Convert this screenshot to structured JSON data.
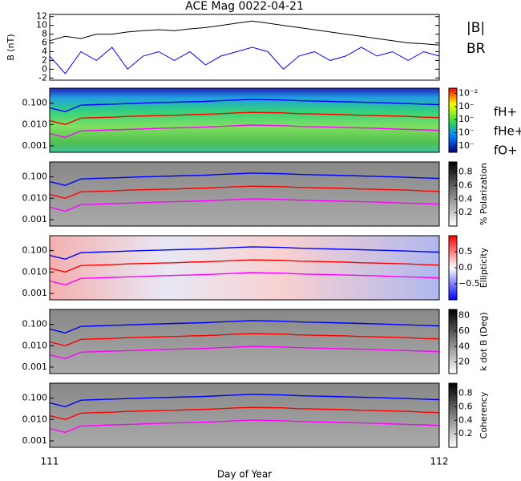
{
  "chart_data": [
    {
      "type": "line",
      "title": "ACE Mag 0022-04-21",
      "ylabel": "B (nT)",
      "xlim": [
        111,
        112
      ],
      "x": [
        111.0,
        111.04,
        111.08,
        111.12,
        111.16,
        111.2,
        111.24,
        111.28,
        111.32,
        111.36,
        111.4,
        111.44,
        111.48,
        111.52,
        111.56,
        111.6,
        111.64,
        111.68,
        111.72,
        111.76,
        111.8,
        111.84,
        111.88,
        111.92,
        111.96,
        112.0
      ],
      "ylim": [
        -2.5,
        12.5
      ],
      "yticks": [
        -2,
        0,
        2,
        4,
        6,
        8,
        10,
        12
      ],
      "series": [
        {
          "name": "|B|",
          "color": "#000000",
          "values": [
            6.5,
            7.5,
            7,
            8,
            8,
            8.5,
            8.8,
            9,
            8.8,
            9.2,
            9.5,
            10,
            10.5,
            11,
            10.5,
            10,
            9.5,
            9,
            8.5,
            8,
            7.5,
            7,
            6.5,
            6,
            5.8,
            5.5
          ]
        },
        {
          "name": "BR",
          "color": "#0000ff",
          "values": [
            3,
            -1,
            4,
            2,
            5,
            0,
            3,
            4,
            2,
            4,
            1,
            3,
            4,
            5,
            4,
            0,
            3,
            4,
            2,
            3,
            5,
            3,
            4,
            2,
            4,
            3
          ]
        }
      ]
    },
    {
      "type": "spectrogram",
      "log_y": true,
      "ylim": [
        0.0005,
        0.5
      ],
      "yticks": [
        {
          "value": 0.1,
          "label": "0.100"
        },
        {
          "value": 0.01,
          "label": "0.010"
        },
        {
          "value": 0.001,
          "label": "0.001"
        }
      ],
      "clim": [
        -6.5,
        -1.6
      ],
      "cticks": [
        {
          "value": -2,
          "label": "10⁻²"
        },
        {
          "value": -3,
          "label": "10⁻"
        },
        {
          "value": -4,
          "label": "10⁻"
        },
        {
          "value": -5,
          "label": "10⁻"
        },
        {
          "value": -6,
          "label": "10⁻"
        }
      ],
      "series": [
        {
          "name": "fH+",
          "color": "#0000ff",
          "values": [
            0.06,
            0.04,
            0.08,
            0.085,
            0.09,
            0.095,
            0.1,
            0.105,
            0.11,
            0.115,
            0.12,
            0.13,
            0.14,
            0.15,
            0.145,
            0.14,
            0.13,
            0.125,
            0.12,
            0.115,
            0.11,
            0.105,
            0.1,
            0.095,
            0.09,
            0.085
          ]
        },
        {
          "name": "fHe+",
          "color": "#ff0000",
          "values": [
            0.015,
            0.01,
            0.02,
            0.021,
            0.022,
            0.024,
            0.025,
            0.026,
            0.027,
            0.029,
            0.03,
            0.032,
            0.035,
            0.037,
            0.036,
            0.035,
            0.032,
            0.031,
            0.03,
            0.029,
            0.027,
            0.026,
            0.025,
            0.024,
            0.022,
            0.021
          ]
        },
        {
          "name": "fO+",
          "color": "#ff00ff",
          "values": [
            0.0038,
            0.0025,
            0.005,
            0.0053,
            0.0056,
            0.0059,
            0.0062,
            0.0066,
            0.0069,
            0.0072,
            0.0075,
            0.0081,
            0.0088,
            0.0094,
            0.0091,
            0.0088,
            0.0081,
            0.0078,
            0.0075,
            0.0072,
            0.0069,
            0.0066,
            0.0062,
            0.0059,
            0.0056,
            0.0053
          ]
        }
      ]
    },
    {
      "type": "spectrogram",
      "log_y": true,
      "ylim": [
        0.0005,
        0.5
      ],
      "yticks": [
        {
          "value": 0.1,
          "label": "0.100"
        },
        {
          "value": 0.01,
          "label": "0.010"
        },
        {
          "value": 0.001,
          "label": "0.001"
        }
      ],
      "clabel": "% Polarization",
      "clim": [
        0,
        0.95
      ],
      "cticks": [
        0.2,
        0.4,
        0.6,
        0.8
      ]
    },
    {
      "type": "spectrogram",
      "log_y": true,
      "ylim": [
        0.0005,
        0.5
      ],
      "yticks": [
        {
          "value": 0.1,
          "label": "0.100"
        },
        {
          "value": 0.01,
          "label": "0.010"
        },
        {
          "value": 0.001,
          "label": "0.001"
        }
      ],
      "clabel": "Ellipticity",
      "clim": [
        -1,
        1
      ],
      "cticks": [
        {
          "value": -0.5,
          "label": "−0.5"
        },
        {
          "value": 0,
          "label": "0.0"
        },
        0.5
      ]
    },
    {
      "type": "spectrogram",
      "log_y": true,
      "ylim": [
        0.0005,
        0.5
      ],
      "yticks": [
        {
          "value": 0.1,
          "label": "0.100"
        },
        {
          "value": 0.01,
          "label": "0.010"
        },
        {
          "value": 0.001,
          "label": "0.001"
        }
      ],
      "clabel": "k dot B (Deg)",
      "clim": [
        5,
        88
      ],
      "cticks": [
        20,
        40,
        60,
        80
      ]
    },
    {
      "type": "spectrogram",
      "log_y": true,
      "ylim": [
        0.0005,
        0.5
      ],
      "yticks": [
        {
          "value": 0.1,
          "label": "0.100"
        },
        {
          "value": 0.01,
          "label": "0.010"
        },
        {
          "value": 0.001,
          "label": "0.001"
        }
      ],
      "clabel": "Coherency",
      "clim": [
        0,
        0.95
      ],
      "cticks": [
        0.2,
        0.4,
        0.6,
        0.8
      ],
      "xticks": [
        111,
        112
      ],
      "xlabel": "Day of Year"
    }
  ]
}
